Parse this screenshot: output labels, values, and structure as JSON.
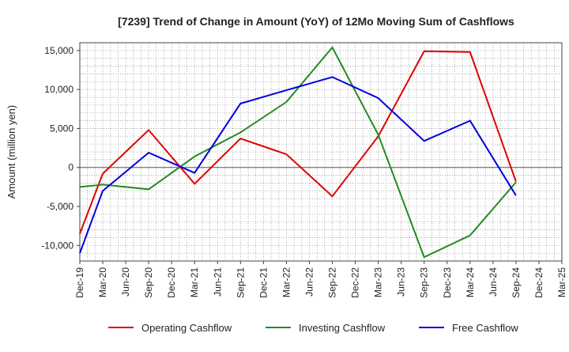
{
  "chart_data": {
    "type": "line",
    "title": "[7239]  Trend of Change in Amount (YoY) of 12Mo Moving Sum of Cashflows",
    "xlabel": "",
    "ylabel": "Amount (million yen)",
    "ylim": [
      -12000,
      16000
    ],
    "yticks": [
      -10000,
      -5000,
      0,
      5000,
      10000,
      15000
    ],
    "ytick_labels": [
      "-10,000",
      "-5,000",
      "0",
      "5,000",
      "10,000",
      "15,000"
    ],
    "categories": [
      "Dec-19",
      "Mar-20",
      "Jun-20",
      "Sep-20",
      "Dec-20",
      "Mar-21",
      "Jun-21",
      "Sep-21",
      "Dec-21",
      "Mar-22",
      "Jun-22",
      "Sep-22",
      "Dec-22",
      "Mar-23",
      "Jun-23",
      "Sep-23",
      "Dec-23",
      "Mar-24",
      "Jun-24",
      "Sep-24",
      "Dec-24",
      "Mar-25"
    ],
    "grid": true,
    "legend_position": "bottom",
    "series": [
      {
        "name": "Operating Cashflow",
        "color": "#e00000",
        "values": [
          -8500,
          -800,
          null,
          4800,
          null,
          -2100,
          null,
          3700,
          null,
          1700,
          null,
          -3700,
          null,
          4000,
          null,
          14900,
          null,
          14800,
          null,
          -1800,
          null,
          null
        ]
      },
      {
        "name": "Investing Cashflow",
        "color": "#228b22",
        "values": [
          -2500,
          -2200,
          null,
          -2800,
          null,
          1400,
          null,
          4500,
          null,
          8400,
          null,
          15400,
          null,
          4200,
          null,
          -11500,
          null,
          -8700,
          null,
          -1900,
          null,
          null
        ]
      },
      {
        "name": "Free Cashflow",
        "color": "#0000e0",
        "values": [
          -11000,
          -3000,
          null,
          1900,
          null,
          -700,
          null,
          8200,
          null,
          9900,
          null,
          11600,
          null,
          8900,
          null,
          3400,
          null,
          6000,
          null,
          -3600,
          null,
          null
        ]
      }
    ]
  }
}
